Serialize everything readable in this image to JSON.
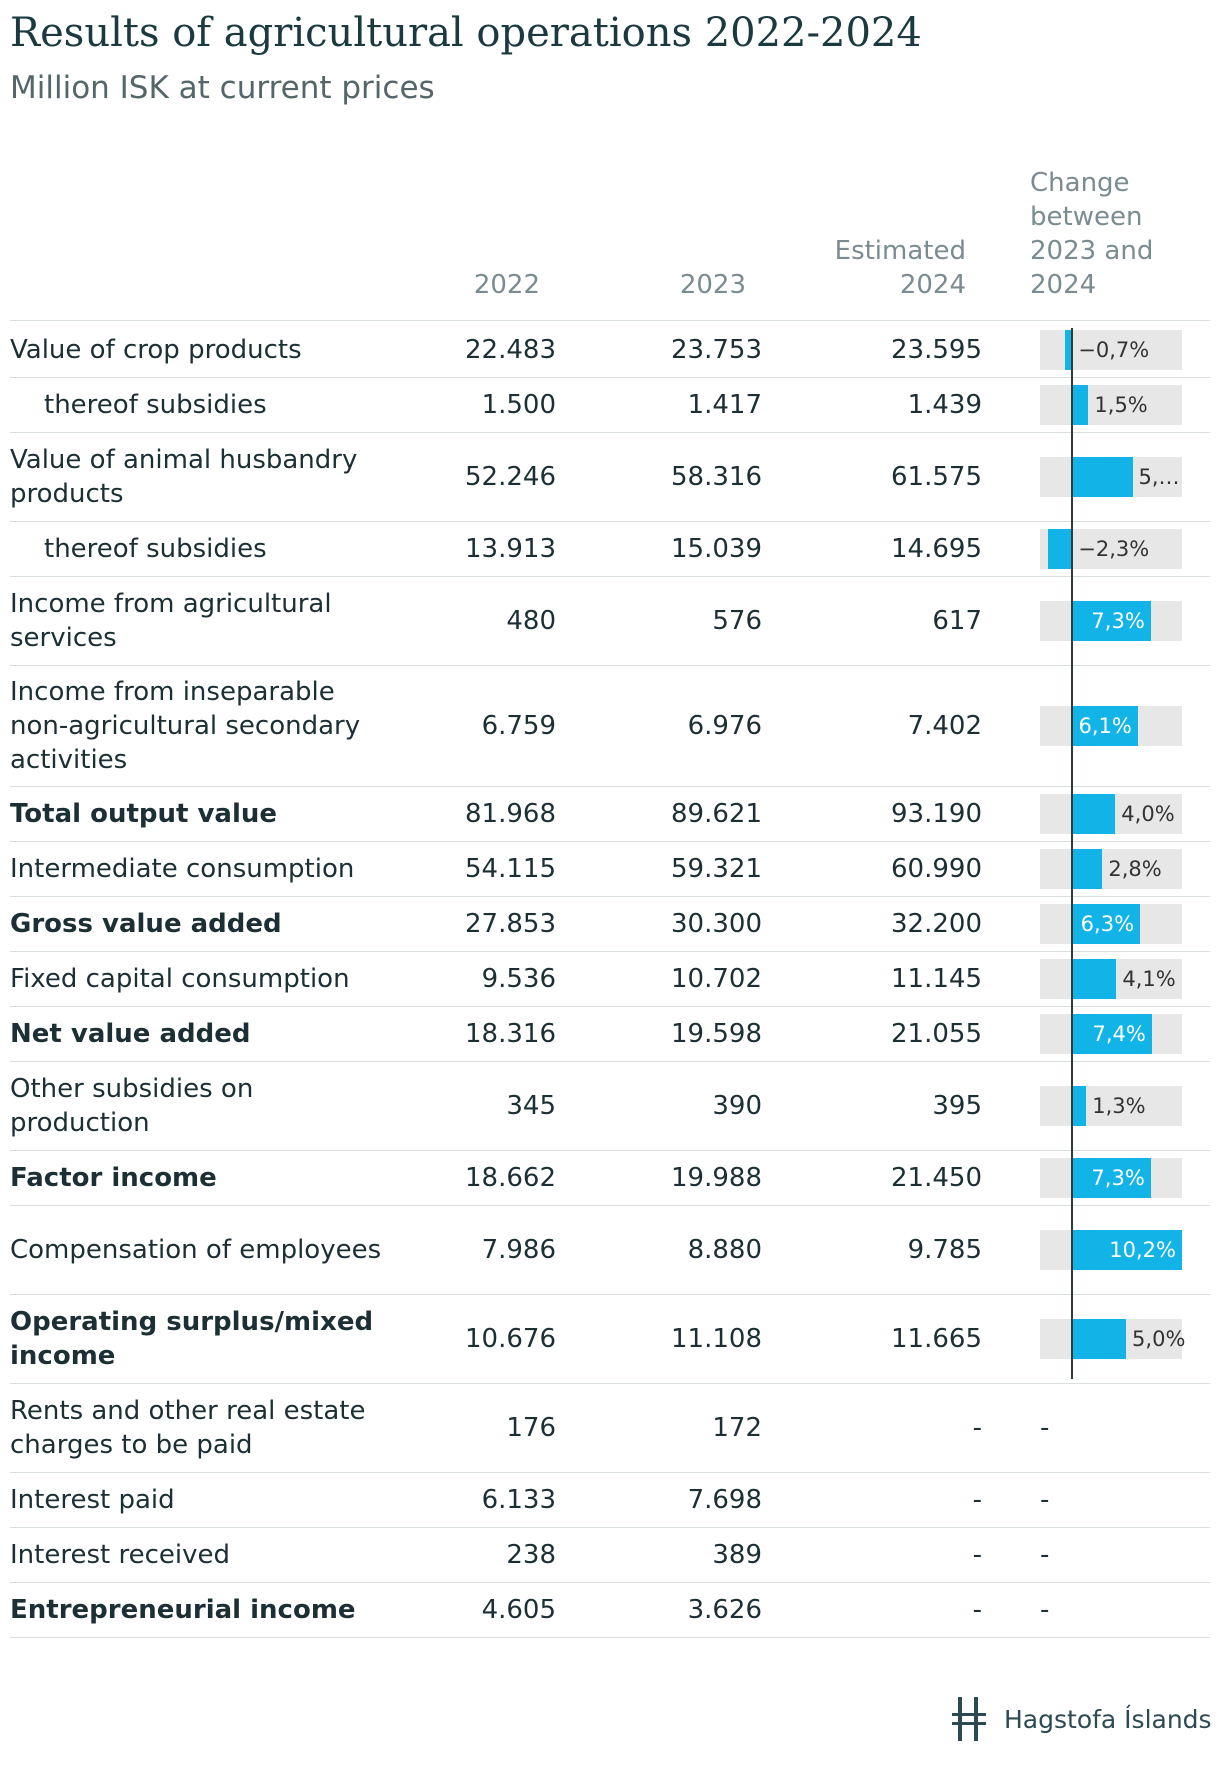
{
  "chart_data": {
    "type": "table",
    "title": "Results of agricultural operations 2022-2024",
    "subtitle": "Million ISK at current prices",
    "columns": [
      "2022",
      "2023",
      "Estimated 2024",
      "Change between 2023 and 2024"
    ],
    "change_axis_range": [
      -3.0,
      10.2
    ],
    "rows": [
      {
        "label": "Value of crop products",
        "v2022": "22.483",
        "v2023": "23.753",
        "v2024": "23.595",
        "change": -0.7,
        "change_label": "−0,7%",
        "indent": false,
        "bold": false
      },
      {
        "label": "thereof subsidies",
        "v2022": "1.500",
        "v2023": "1.417",
        "v2024": "1.439",
        "change": 1.5,
        "change_label": "1,5%",
        "indent": true,
        "bold": false
      },
      {
        "label": "Value of animal husbandry products",
        "v2022": "52.246",
        "v2023": "58.316",
        "v2024": "61.575",
        "change": 5.6,
        "change_label": "5,…",
        "indent": false,
        "bold": false
      },
      {
        "label": "thereof subsidies",
        "v2022": "13.913",
        "v2023": "15.039",
        "v2024": "14.695",
        "change": -2.3,
        "change_label": "−2,3%",
        "indent": true,
        "bold": false
      },
      {
        "label": "Income from agricultural services",
        "v2022": "480",
        "v2023": "576",
        "v2024": "617",
        "change": 7.3,
        "change_label": "7,3%",
        "indent": false,
        "bold": false
      },
      {
        "label": "Income from inseparable non-agricultural secondary activities",
        "v2022": "6.759",
        "v2023": "6.976",
        "v2024": "7.402",
        "change": 6.1,
        "change_label": "6,1%",
        "indent": false,
        "bold": false
      },
      {
        "label": "Total output value",
        "v2022": "81.968",
        "v2023": "89.621",
        "v2024": "93.190",
        "change": 4.0,
        "change_label": "4,0%",
        "indent": false,
        "bold": true
      },
      {
        "label": "Intermediate consumption",
        "v2022": "54.115",
        "v2023": "59.321",
        "v2024": "60.990",
        "change": 2.8,
        "change_label": "2,8%",
        "indent": false,
        "bold": false
      },
      {
        "label": "Gross value added",
        "v2022": "27.853",
        "v2023": "30.300",
        "v2024": "32.200",
        "change": 6.3,
        "change_label": "6,3%",
        "indent": false,
        "bold": true
      },
      {
        "label": "Fixed capital consumption",
        "v2022": "9.536",
        "v2023": "10.702",
        "v2024": "11.145",
        "change": 4.1,
        "change_label": "4,1%",
        "indent": false,
        "bold": false
      },
      {
        "label": "Net value added",
        "v2022": "18.316",
        "v2023": "19.598",
        "v2024": "21.055",
        "change": 7.4,
        "change_label": "7,4%",
        "indent": false,
        "bold": true
      },
      {
        "label": "Other subsidies on production",
        "v2022": "345",
        "v2023": "390",
        "v2024": "395",
        "change": 1.3,
        "change_label": "1,3%",
        "indent": false,
        "bold": false
      },
      {
        "label": "Factor income",
        "v2022": "18.662",
        "v2023": "19.988",
        "v2024": "21.450",
        "change": 7.3,
        "change_label": "7,3%",
        "indent": false,
        "bold": true
      },
      {
        "label": "Compensation of employees",
        "v2022": "7.986",
        "v2023": "8.880",
        "v2024": "9.785",
        "change": 10.2,
        "change_label": "10,2%",
        "indent": false,
        "bold": false
      },
      {
        "label": "Operating surplus/mixed income",
        "v2022": "10.676",
        "v2023": "11.108",
        "v2024": "11.665",
        "change": 5.0,
        "change_label": "5,0%",
        "indent": false,
        "bold": true
      },
      {
        "label": "Rents and other real estate charges to be paid",
        "v2022": "176",
        "v2023": "172",
        "v2024": "-",
        "change": null,
        "change_label": "-",
        "indent": false,
        "bold": false
      },
      {
        "label": "Interest paid",
        "v2022": "6.133",
        "v2023": "7.698",
        "v2024": "-",
        "change": null,
        "change_label": "-",
        "indent": false,
        "bold": false
      },
      {
        "label": "Interest received",
        "v2022": "238",
        "v2023": "389",
        "v2024": "-",
        "change": null,
        "change_label": "-",
        "indent": false,
        "bold": false
      },
      {
        "label": "Entrepreneurial income",
        "v2022": "4.605",
        "v2023": "3.626",
        "v2024": "-",
        "change": null,
        "change_label": "-",
        "indent": false,
        "bold": true
      }
    ]
  },
  "header": {
    "col_2022": "2022",
    "col_2023": "2023",
    "col_2024_line1": "Estimated",
    "col_2024_line2": "2024",
    "col_change_line1": "Change",
    "col_change_line2": "between",
    "col_change_line3": "2023 and",
    "col_change_line4": "2024"
  },
  "footer": {
    "logo_text": "Hagstofa Íslands"
  },
  "colors": {
    "bar": "#12b4e8",
    "bar_bg": "#e7e7e7",
    "title": "#1a3a40"
  }
}
